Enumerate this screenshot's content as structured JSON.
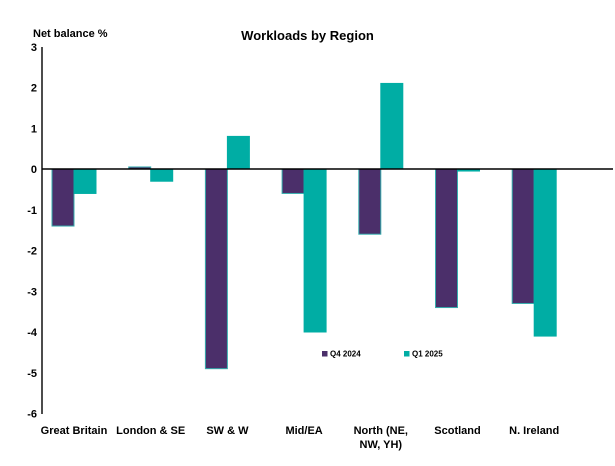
{
  "chart_data": {
    "type": "bar",
    "title": "Workloads by Region",
    "ylabel": "Net balance %",
    "ylim": [
      -6,
      3
    ],
    "yticks": [
      3,
      2,
      1,
      0,
      -1,
      -2,
      -3,
      -4,
      -5,
      -6
    ],
    "grid": false,
    "legend_position": "inside-bottom-center",
    "categories": [
      "Great Britain",
      "London & SE",
      "SW & W",
      "Mid/EA",
      "North (NE, NW, YH)",
      "Scotland",
      "N. Ireland"
    ],
    "category_label_lines": [
      [
        "Great Britain"
      ],
      [
        "London & SE"
      ],
      [
        "SW & W"
      ],
      [
        "Mid/EA"
      ],
      [
        "North (NE,",
        "NW, YH)"
      ],
      [
        "Scotland"
      ],
      [
        "N. Ireland"
      ]
    ],
    "series": [
      {
        "name": "Q4 2024",
        "color": "#4B2F6A",
        "border_color": "#35ADAD",
        "values": [
          -1.4,
          0.05,
          -4.9,
          -0.6,
          -1.6,
          -3.4,
          -3.3
        ]
      },
      {
        "name": "Q1 2025",
        "color": "#00ADA4",
        "border_color": "#00ADA4",
        "values": [
          -0.6,
          -0.3,
          0.8,
          -4.0,
          2.1,
          -0.05,
          -4.1
        ]
      }
    ],
    "axis_color": "#000000",
    "background_color": "#ffffff"
  }
}
